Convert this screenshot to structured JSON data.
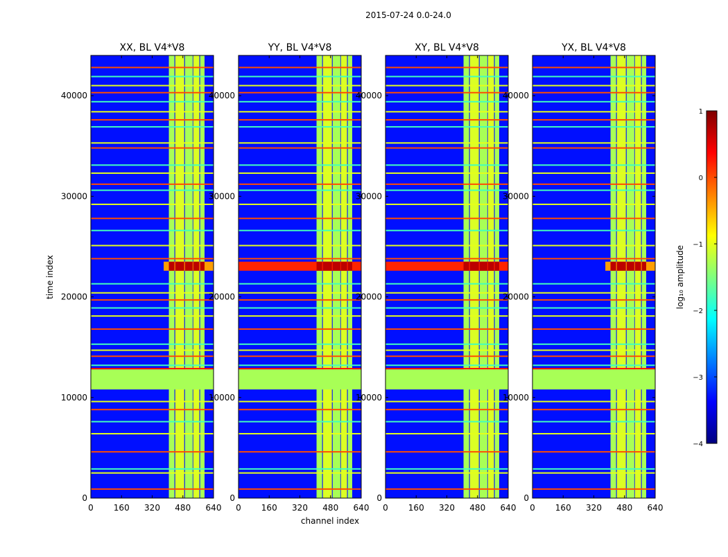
{
  "chart_data": {
    "type": "heatmap",
    "suptitle": "2015-07-24 0.0-24.0",
    "xlabel": "channel index",
    "ylabel": "time index",
    "xlim": [
      0,
      640
    ],
    "ylim": [
      0,
      44000
    ],
    "xticks": [
      0,
      160,
      320,
      480,
      640
    ],
    "yticks": [
      0,
      10000,
      20000,
      30000,
      40000
    ],
    "panels": [
      {
        "title": "XX, BL V4*V8"
      },
      {
        "title": "YY, BL V4*V8"
      },
      {
        "title": "XY, BL V4*V8"
      },
      {
        "title": "YX, BL V4*V8"
      }
    ],
    "colorbar": {
      "label": "log10 amplitude",
      "label_display": "log₁₀ amplitude",
      "range": [
        -4,
        1
      ],
      "ticks": [
        1,
        0,
        -1,
        -2,
        -3,
        -4
      ],
      "tick_labels": [
        "1",
        "0",
        "−1",
        "−2",
        "−3",
        "−4"
      ],
      "colors": [
        "#00007f",
        "#0000ff",
        "#007fff",
        "#00ffff",
        "#7fff7f",
        "#ffff00",
        "#ff7f00",
        "#ff0000",
        "#7f0000"
      ]
    },
    "features": {
      "background_level": -3.3,
      "rfi_bands_channels": [
        [
          407,
          436
        ],
        [
          440,
          487
        ],
        [
          491,
          531
        ],
        [
          534,
          566
        ],
        [
          570,
          593
        ]
      ],
      "rfi_band_level": -1.3,
      "flagged_gap_time": [
        10800,
        12800
      ],
      "flagged_gap_level": -1.3,
      "strong_event_time": [
        22600,
        23500
      ],
      "strong_event_level": 0.7,
      "horizontal_lines_time": [
        900,
        2500,
        2900,
        4600,
        6400,
        7600,
        8800,
        9600,
        13200,
        14100,
        14700,
        15300,
        16800,
        18100,
        18900,
        19700,
        20400,
        21300,
        23800,
        25100,
        26600,
        27800,
        29200,
        30600,
        31200,
        32300,
        33100,
        34800,
        35300,
        36900,
        37600,
        38400,
        39400,
        40300,
        41000,
        41900,
        42800
      ]
    }
  }
}
